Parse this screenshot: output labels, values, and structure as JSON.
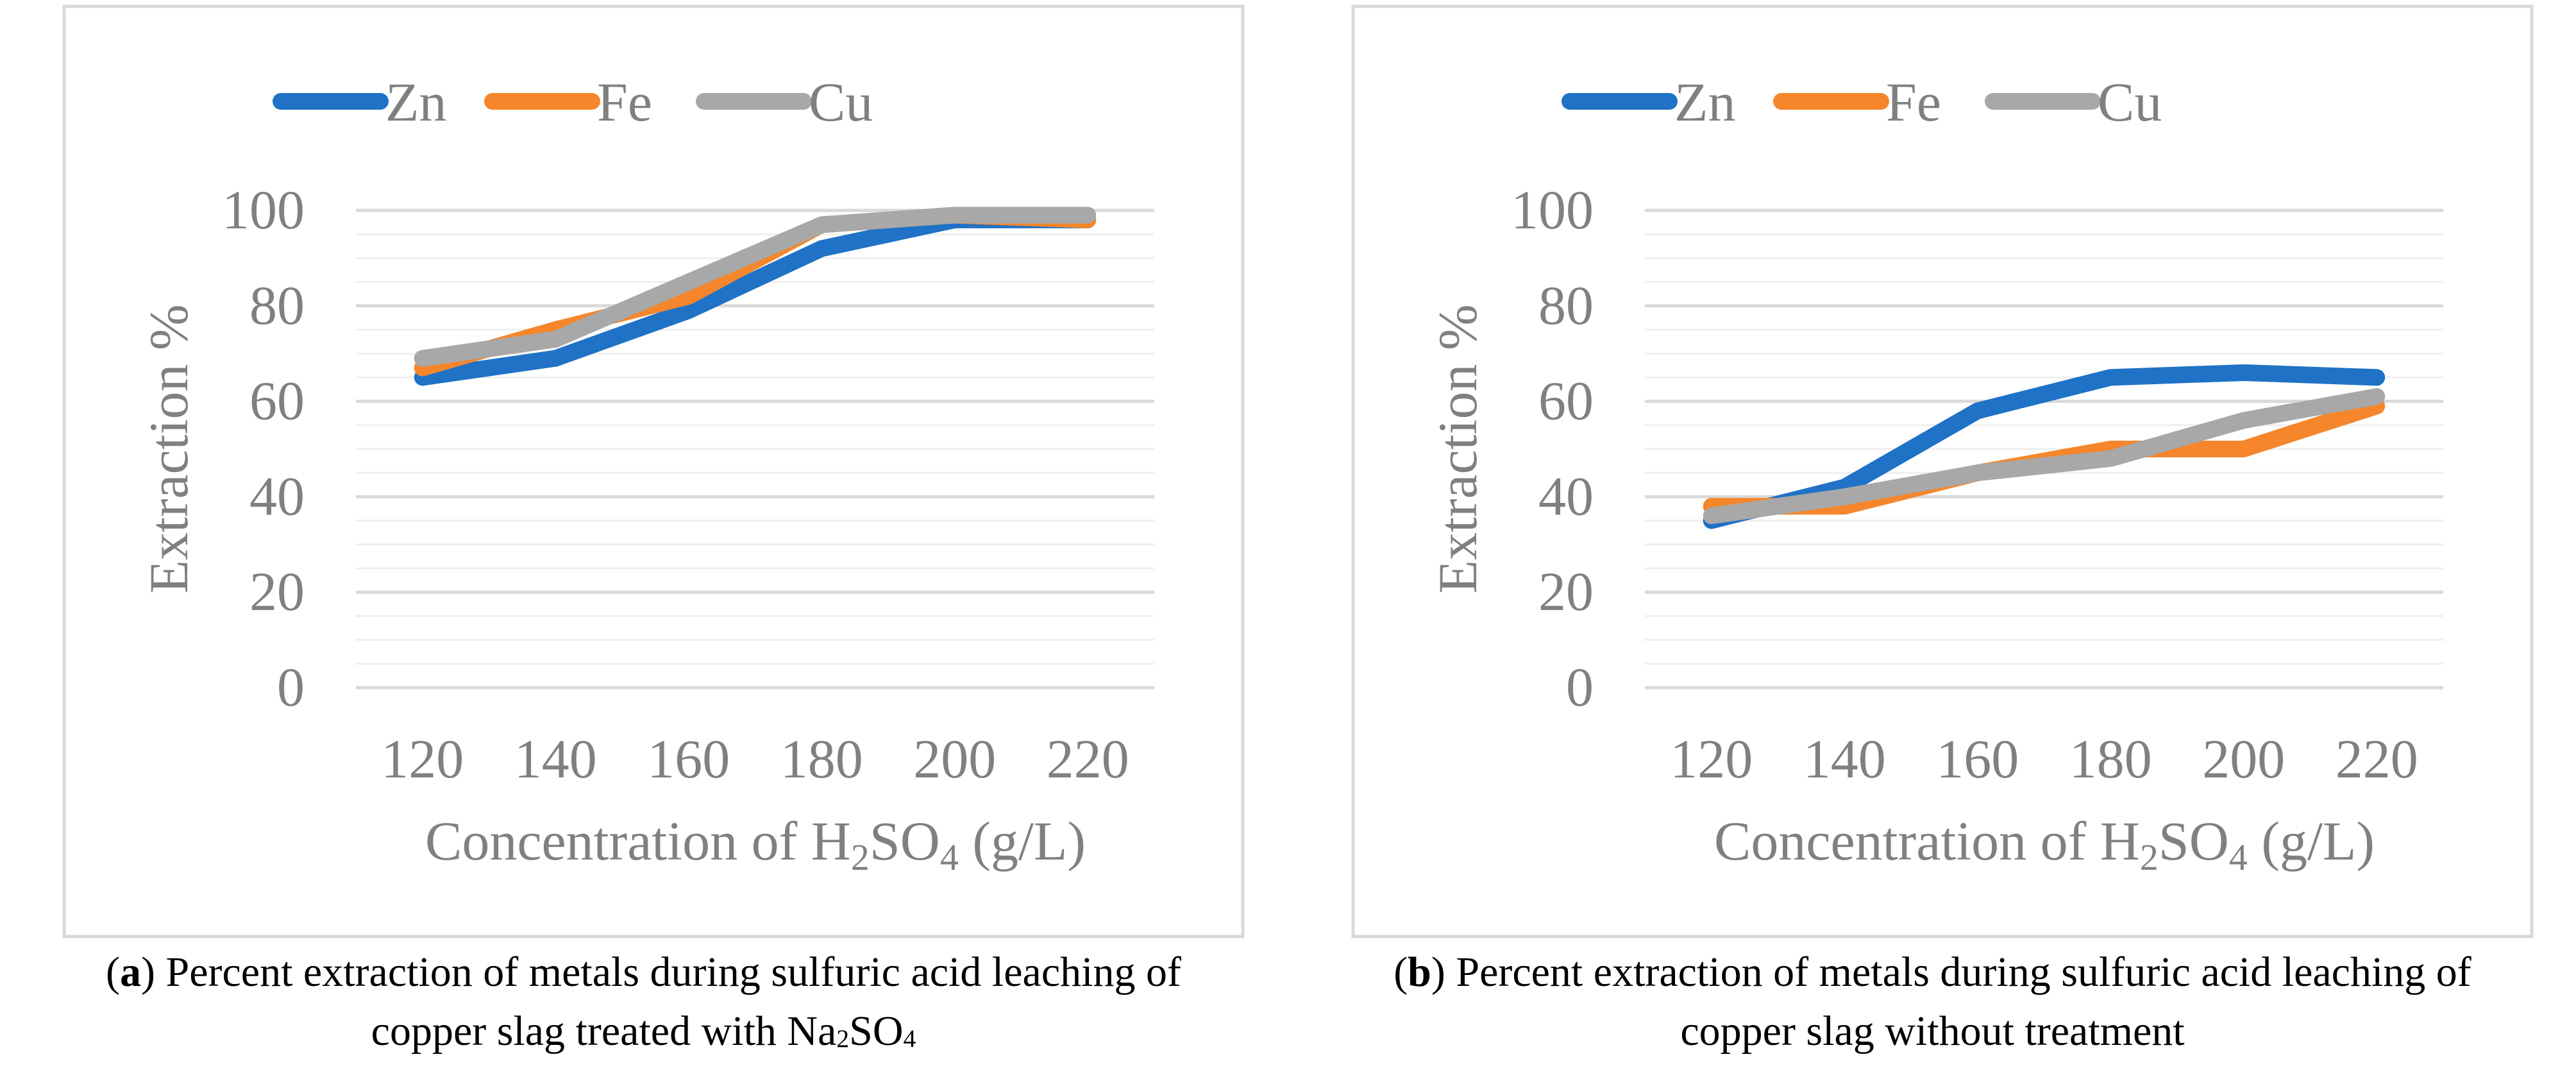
{
  "chart_data": [
    {
      "type": "line",
      "panel": "a",
      "x": [
        120,
        140,
        160,
        180,
        200,
        220
      ],
      "series": [
        {
          "name": "Zn",
          "color": "#1f72c6",
          "values": [
            65,
            69,
            79,
            92,
            98,
            98
          ]
        },
        {
          "name": "Fe",
          "color": "#f5862b",
          "values": [
            67,
            75,
            82,
            97,
            99,
            98
          ]
        },
        {
          "name": "Cu",
          "color": "#a8a8a8",
          "values": [
            69,
            73,
            85,
            97,
            99,
            99
          ]
        }
      ],
      "xlabel": {
        "pre": "Concentration of H",
        "sub1": "2",
        "mid": "SO",
        "sub2": "4",
        "post": " (g/L)"
      },
      "ylabel": "Extraction  %",
      "ylim": [
        0,
        100
      ],
      "yticks": [
        0,
        20,
        40,
        60,
        80,
        100
      ],
      "legend": "top",
      "grid": true,
      "caption": {
        "letter": "a",
        "pre": ") Percent extraction of metals during sulfuric acid leaching of",
        "line2pre": "copper slag treated with Na",
        "sub1": "2",
        "mid": "SO",
        "sub2": "4"
      }
    },
    {
      "type": "line",
      "panel": "b",
      "x": [
        120,
        140,
        160,
        180,
        200,
        220
      ],
      "series": [
        {
          "name": "Zn",
          "color": "#1f72c6",
          "values": [
            35,
            42,
            58,
            65,
            66,
            65
          ]
        },
        {
          "name": "Fe",
          "color": "#f5862b",
          "values": [
            38,
            38,
            45,
            50,
            50,
            59
          ]
        },
        {
          "name": "Cu",
          "color": "#a8a8a8",
          "values": [
            36,
            40,
            45,
            48,
            56,
            61
          ]
        }
      ],
      "xlabel": {
        "pre": "Concentration of H",
        "sub1": "2",
        "mid": "SO",
        "sub2": "4",
        "post": " (g/L)"
      },
      "ylabel": "Extraction  %",
      "ylim": [
        0,
        100
      ],
      "yticks": [
        0,
        20,
        40,
        60,
        80,
        100
      ],
      "legend": "top",
      "grid": true,
      "caption": {
        "letter": "b",
        "pre": ") Percent extraction of metals during sulfuric acid leaching of",
        "line2": "copper slag without treatment"
      }
    }
  ]
}
